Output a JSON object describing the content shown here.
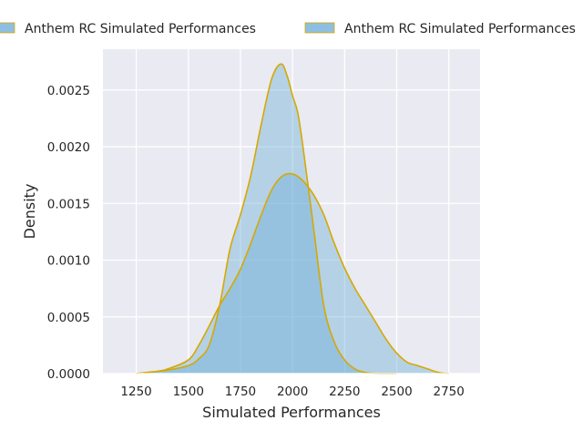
{
  "chart_data": {
    "type": "area",
    "title": "",
    "xlabel": "Simulated Performances",
    "ylabel": "Density",
    "xlim": [
      1090,
      2900
    ],
    "ylim": [
      0,
      0.00286
    ],
    "xticks": [
      1250,
      1500,
      1750,
      2000,
      2250,
      2500,
      2750
    ],
    "xtick_labels": [
      "1250",
      "1500",
      "1750",
      "2000",
      "2250",
      "2500",
      "2750"
    ],
    "yticks": [
      0,
      0.0005,
      0.001,
      0.0015,
      0.002,
      0.0025
    ],
    "ytick_labels": [
      "0.0000",
      "0.0005",
      "0.0010",
      "0.0015",
      "0.0020",
      "0.0025"
    ],
    "grid": true,
    "legend_placement": "top",
    "fill_color": "#6baed6",
    "line_color": "#d4a900",
    "background": "#eaeaf2",
    "series": [
      {
        "name": "Anthem RC Simulated Performances",
        "x": [
          1250,
          1300,
          1400,
          1500,
          1550,
          1600,
          1650,
          1700,
          1750,
          1800,
          1850,
          1900,
          1945,
          1975,
          2000,
          2025,
          2050,
          2100,
          2150,
          2200,
          2250,
          2300,
          2350,
          2400,
          2500
        ],
        "y": [
          0,
          1e-05,
          3e-05,
          7e-05,
          0.00013,
          0.00025,
          0.0006,
          0.0011,
          0.0014,
          0.00175,
          0.0022,
          0.0026,
          0.00273,
          0.00262,
          0.00245,
          0.0023,
          0.002,
          0.0013,
          0.0006,
          0.00028,
          0.00012,
          4e-05,
          1e-05,
          0,
          0
        ]
      },
      {
        "name": "Anthem RC Simulated Performances",
        "x": [
          1250,
          1350,
          1400,
          1500,
          1550,
          1600,
          1650,
          1700,
          1750,
          1800,
          1850,
          1900,
          1950,
          2000,
          2050,
          2100,
          2150,
          2200,
          2250,
          2300,
          2350,
          2400,
          2450,
          2500,
          2550,
          2600,
          2650,
          2700,
          2750
        ],
        "y": [
          0,
          2e-05,
          4e-05,
          0.00012,
          0.00025,
          0.00042,
          0.0006,
          0.00075,
          0.00092,
          0.00115,
          0.0014,
          0.00162,
          0.00174,
          0.00176,
          0.0017,
          0.00158,
          0.0014,
          0.00115,
          0.00093,
          0.00075,
          0.0006,
          0.00045,
          0.0003,
          0.00018,
          0.0001,
          7e-05,
          4e-05,
          1e-05,
          0
        ]
      }
    ]
  }
}
